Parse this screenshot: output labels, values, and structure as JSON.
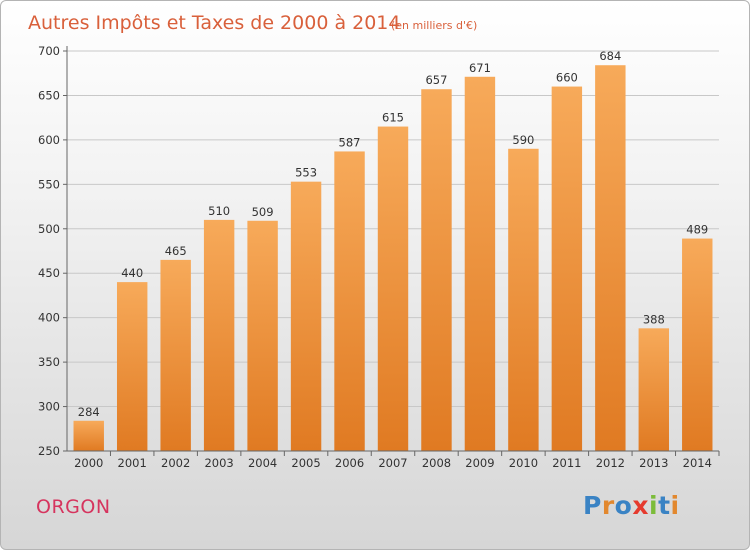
{
  "chart_data": {
    "type": "bar",
    "title": "Autres Impôts et Taxes de 2000 à 2014",
    "subtitle": "(en milliers d'€)",
    "categories": [
      "2000",
      "2001",
      "2002",
      "2003",
      "2004",
      "2005",
      "2006",
      "2007",
      "2008",
      "2009",
      "2010",
      "2011",
      "2012",
      "2013",
      "2014"
    ],
    "values": [
      284,
      440,
      465,
      510,
      509,
      553,
      587,
      615,
      657,
      671,
      590,
      660,
      684,
      388,
      489
    ],
    "ylim": [
      250,
      700
    ],
    "yticks": [
      250,
      300,
      350,
      400,
      450,
      500,
      550,
      600,
      650,
      700
    ],
    "grid": true,
    "bar_color": "#f0923a",
    "bar_color_light": "#f7aa5a",
    "bar_color_dark": "#e07a22"
  },
  "footer": {
    "place": "ORGON",
    "brand": "Proxiti",
    "brand_colors": [
      "#3a83c4",
      "#e2882e",
      "#3a83c4",
      "#e53a2e",
      "#7cbc3a",
      "#3a83c4",
      "#e2882e"
    ]
  },
  "colors": {
    "title": "#d9603b",
    "place": "#d6345e"
  }
}
